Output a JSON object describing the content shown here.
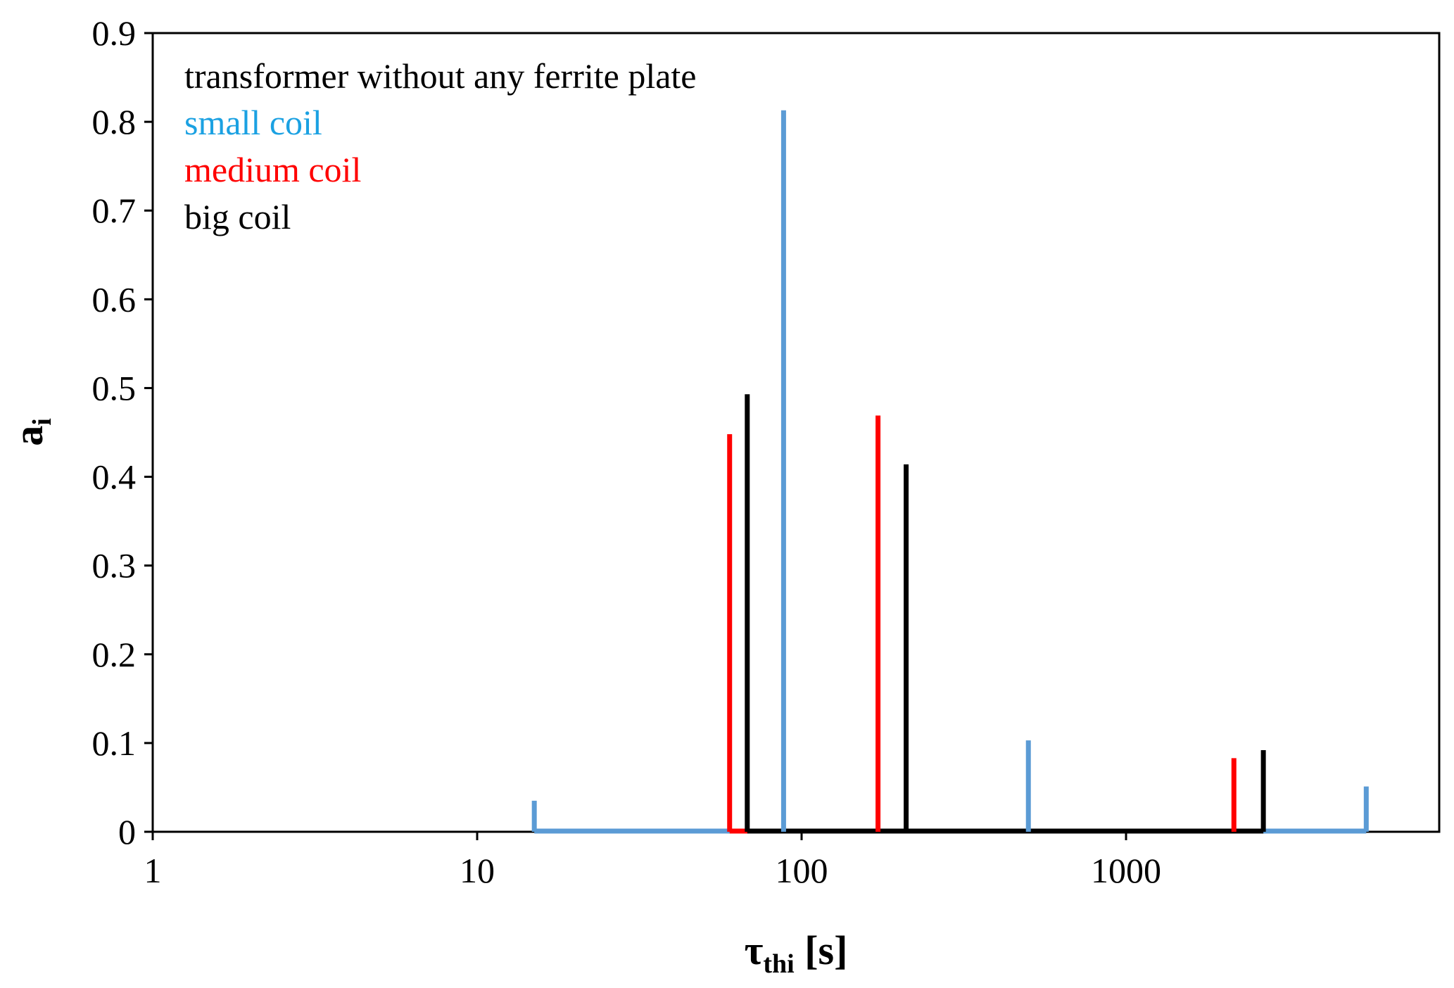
{
  "chart_data": {
    "type": "line",
    "title": "",
    "xscale": "log",
    "xlim": [
      1,
      8000
    ],
    "ylim": [
      0,
      0.9
    ],
    "yticks": [
      "0",
      "0.1",
      "0.2",
      "0.3",
      "0.4",
      "0.5",
      "0.6",
      "0.7",
      "0.8",
      "0.9"
    ],
    "xticks": [
      "1",
      "10",
      "100",
      "1000"
    ],
    "xlabel": {
      "main": "τ",
      "sub": "thi",
      "unit": " [s]"
    },
    "ylabel": {
      "main": "a",
      "sub": "i"
    },
    "legend_header": "transformer without any ferrite plate",
    "series": [
      {
        "name": "small coil",
        "color": "#5b9bd5",
        "legend_color": "#1ba1e2",
        "x": [
          15,
          88,
          500,
          5500
        ],
        "values": [
          0.035,
          0.813,
          0.103,
          0.051
        ],
        "baseline": [
          15,
          5500
        ]
      },
      {
        "name": "medium coil",
        "color": "#ff0000",
        "legend_color": "#ff0000",
        "x": [
          60,
          172,
          2150
        ],
        "values": [
          0.448,
          0.469,
          0.083
        ],
        "baseline": [
          60,
          2150
        ]
      },
      {
        "name": "big coil",
        "color": "#000000",
        "legend_color": "#000000",
        "x": [
          68,
          210,
          2650
        ],
        "values": [
          0.493,
          0.414,
          0.092
        ],
        "baseline": [
          68,
          2650
        ]
      }
    ]
  }
}
